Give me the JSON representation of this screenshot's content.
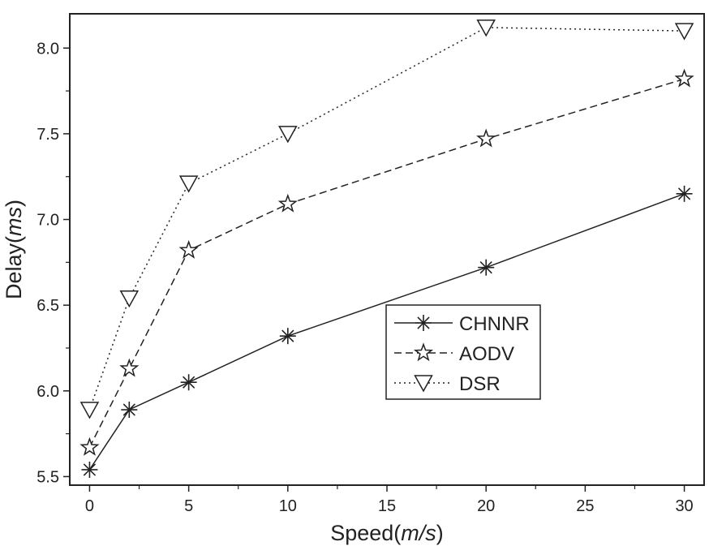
{
  "chart_data": {
    "type": "line",
    "title": "",
    "xlabel": {
      "prefix": "Speed(",
      "unit": "m/s",
      "suffix": ")"
    },
    "ylabel": {
      "prefix": "Delay(",
      "unit": "ms",
      "suffix": ")"
    },
    "xlim": [
      -1,
      31
    ],
    "ylim": [
      5.45,
      8.2
    ],
    "xticks": [
      0,
      5,
      10,
      15,
      20,
      25,
      30
    ],
    "yticks": [
      5.5,
      6.0,
      6.5,
      7.0,
      7.5,
      8.0
    ],
    "xtick_labels": [
      "0",
      "5",
      "10",
      "15",
      "20",
      "25",
      "30"
    ],
    "ytick_labels": [
      "5.5",
      "6.0",
      "6.5",
      "7.0",
      "7.5",
      "8.0"
    ],
    "grid": false,
    "legend": {
      "placement": "center-right"
    },
    "series": [
      {
        "name": "CHNNR",
        "marker": "asterisk",
        "line": "solid",
        "x": [
          0,
          2,
          5,
          10,
          20,
          30
        ],
        "y": [
          5.54,
          5.89,
          6.05,
          6.32,
          6.72,
          7.15
        ]
      },
      {
        "name": "AODV",
        "marker": "star",
        "line": "dashed",
        "x": [
          0,
          2,
          5,
          10,
          20,
          30
        ],
        "y": [
          5.67,
          6.13,
          6.82,
          7.09,
          7.47,
          7.82
        ]
      },
      {
        "name": "DSR",
        "marker": "triangle-down",
        "line": "dotted",
        "x": [
          0,
          2,
          5,
          10,
          20,
          30
        ],
        "y": [
          5.89,
          6.54,
          7.21,
          7.5,
          8.12,
          8.1
        ]
      }
    ]
  }
}
